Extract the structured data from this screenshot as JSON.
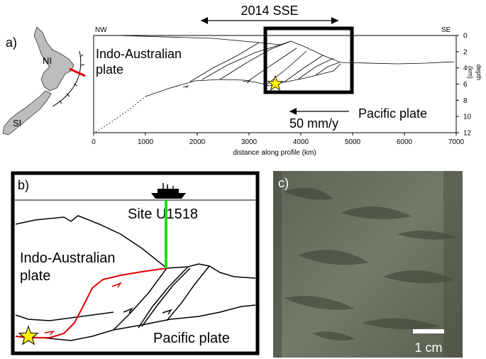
{
  "panel_a": {
    "label": "a)",
    "map": {
      "north_island_label": "NI",
      "south_island_label": "SI",
      "land_color": "#bdbdbd",
      "profile_line_color": "#e00000"
    },
    "section": {
      "header": "2014 SSE",
      "nw_label": "NW",
      "se_label": "SE",
      "indo_label_line1": "Indo-Australian",
      "indo_label_line2": "plate",
      "pacific_label": "Pacific plate",
      "rate_label": "50 mm/y",
      "x_axis_label": "distance along profile (km)",
      "x_ticks": [
        "0",
        "1000",
        "2000",
        "3000",
        "4000",
        "5000",
        "6000",
        "7000"
      ],
      "y_axis_label_line1": "depth",
      "y_axis_label_line2": "(km)",
      "y_ticks": [
        "0",
        "2",
        "4",
        "6",
        "8",
        "10",
        "12"
      ],
      "star_color": "#ffee00"
    }
  },
  "panel_b": {
    "label": "b)",
    "site_label": "Site U1518",
    "indo_label_line1": "Indo-Australian",
    "indo_label_line2": "plate",
    "pacific_label": "Pacific plate",
    "borehole_color": "#22dd22",
    "fault_color": "#e00000",
    "star_color": "#ffee00"
  },
  "panel_c": {
    "label": "c)",
    "scale_label": "1 cm",
    "core_color": "#6b7160"
  }
}
